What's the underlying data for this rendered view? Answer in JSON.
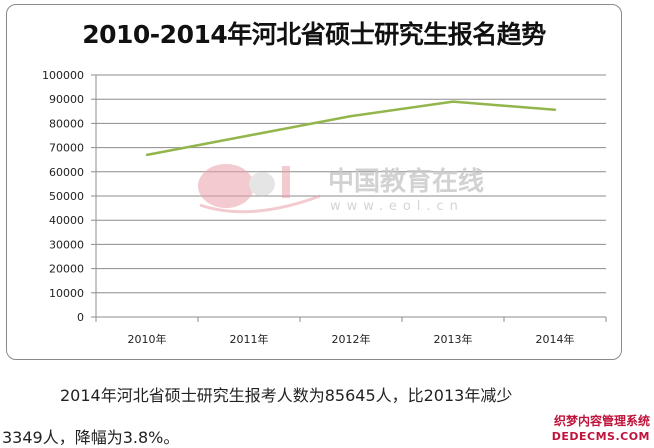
{
  "chart_data": {
    "type": "line",
    "title": "2010-2014年河北省硕士研究生报名趋势",
    "categories": [
      "2010年",
      "2011年",
      "2012年",
      "2013年",
      "2014年"
    ],
    "series": [
      {
        "values": [
          67000,
          75000,
          83000,
          88994,
          85645
        ],
        "color": "#92b54c"
      }
    ],
    "ylim": [
      0,
      100000
    ],
    "yticks": [
      0,
      10000,
      20000,
      30000,
      40000,
      50000,
      60000,
      70000,
      80000,
      90000,
      100000
    ],
    "grid": true,
    "legend": "none"
  },
  "watermark": {
    "logo_text": "eol",
    "brand": "中国教育在线",
    "url": "www.eol.cn"
  },
  "caption": {
    "line1": "2014年河北省硕士研究生报考人数为85645人，比2013年减少",
    "line2": "3349人，降幅为3.8%。"
  },
  "corner_watermark": {
    "top": "织梦内容管理系统",
    "bottom": "DEDECMS.COM"
  }
}
